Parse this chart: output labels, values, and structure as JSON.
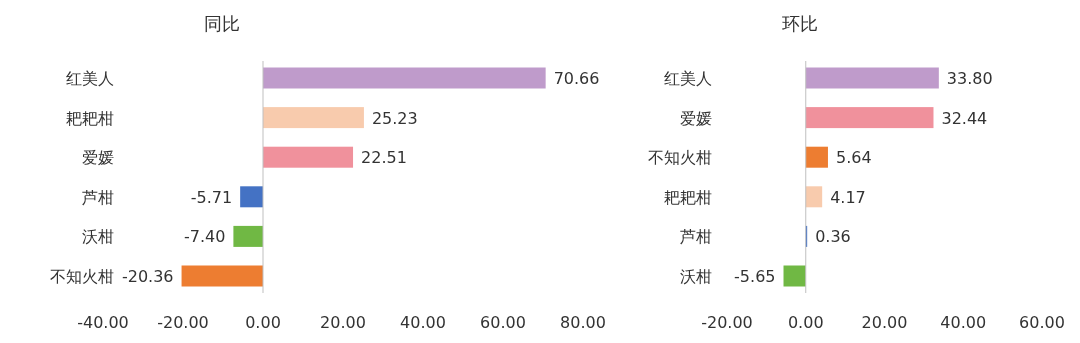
{
  "chart_data": [
    {
      "type": "bar",
      "orientation": "horizontal",
      "title": "同比",
      "categories": [
        "红美人",
        "耙耙柑",
        "爱媛",
        "芦柑",
        "沃柑",
        "不知火柑"
      ],
      "values": [
        70.66,
        25.23,
        22.51,
        -5.71,
        -7.4,
        -20.36
      ],
      "colors": [
        "#bf9bcb",
        "#f8cbad",
        "#f0919c",
        "#4472c4",
        "#70b844",
        "#ed7d31"
      ],
      "value_labels": [
        "70.66",
        "25.23",
        "22.51",
        "-5.71",
        "-7.40",
        "-20.36"
      ],
      "xlim": [
        -40,
        80
      ],
      "xticks": [
        {
          "value": -40,
          "label": "-40.00"
        },
        {
          "value": -20,
          "label": "-20.00"
        },
        {
          "value": 0,
          "label": "0.00"
        },
        {
          "value": 20,
          "label": "20.00"
        },
        {
          "value": 40,
          "label": "40.00"
        },
        {
          "value": 60,
          "label": "60.00"
        },
        {
          "value": 80,
          "label": "80.00"
        }
      ]
    },
    {
      "type": "bar",
      "orientation": "horizontal",
      "title": "环比",
      "categories": [
        "红美人",
        "爱媛",
        "不知火柑",
        "耙耙柑",
        "芦柑",
        "沃柑"
      ],
      "values": [
        33.8,
        32.44,
        5.64,
        4.17,
        0.36,
        -5.65
      ],
      "colors": [
        "#bf9bcb",
        "#f0919c",
        "#ed7d31",
        "#f8cbad",
        "#4472c4",
        "#70b844"
      ],
      "value_labels": [
        "33.80",
        "32.44",
        "5.64",
        "4.17",
        "0.36",
        "-5.65"
      ],
      "xlim": [
        -20,
        60
      ],
      "xticks": [
        {
          "value": -20,
          "label": "-20.00"
        },
        {
          "value": 0,
          "label": "0.00"
        },
        {
          "value": 20,
          "label": "20.00"
        },
        {
          "value": 40,
          "label": "40.00"
        },
        {
          "value": 60,
          "label": "60.00"
        }
      ]
    }
  ]
}
